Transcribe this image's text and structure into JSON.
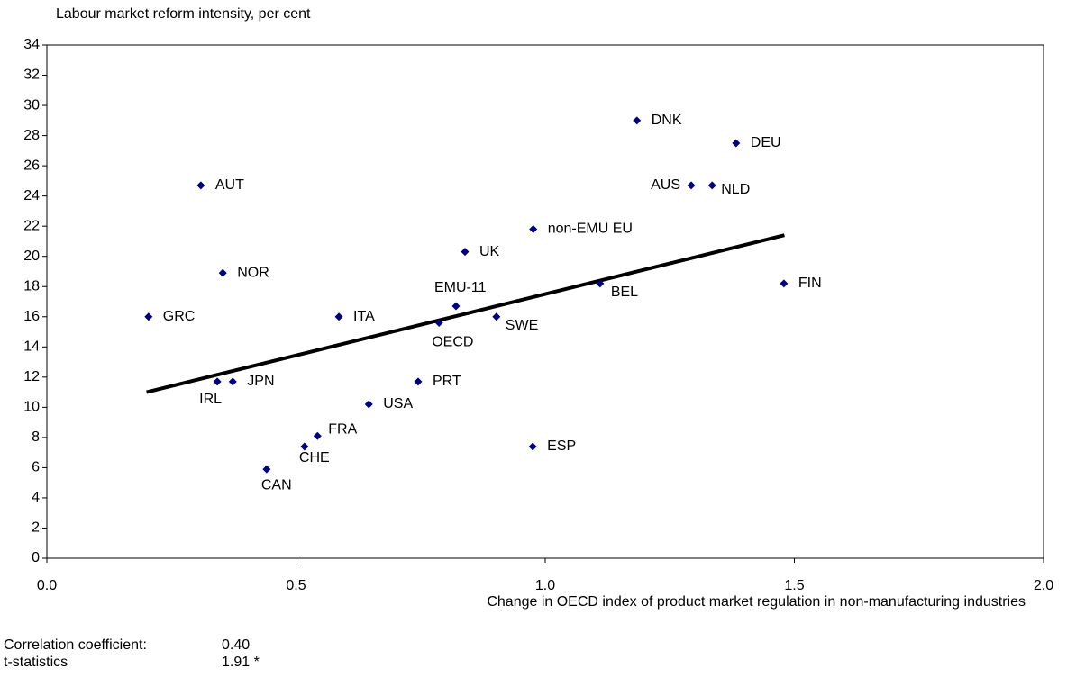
{
  "chart_data": {
    "type": "scatter",
    "y_label": "Labour market reform intensity, per cent",
    "x_label": "Change in OECD index of product market regulation in non-manufacturing industries",
    "color": "#000080",
    "xlim": [
      0,
      2
    ],
    "ylim": [
      0,
      34
    ],
    "xticks": [
      {
        "value": 0,
        "label": "0.0"
      },
      0.5,
      {
        "value": 1,
        "label": "1.0"
      },
      1.5,
      {
        "value": 2,
        "label": "2.0"
      }
    ],
    "yticks": [
      0,
      2,
      4,
      6,
      8,
      10,
      12,
      14,
      16,
      18,
      20,
      22,
      24,
      26,
      28,
      30,
      32,
      34
    ],
    "points": {
      "labels": [
        "DNK",
        "DEU",
        "AUS",
        "NLD",
        "AUT",
        "non-EMU EU",
        "UK",
        "NOR",
        "BEL",
        "FIN",
        "EMU-11",
        "GRC",
        "ITA",
        "SWE",
        "OECD",
        "IRL",
        "JPN",
        "PRT",
        "USA",
        "FRA",
        "CHE",
        "ESP",
        "CAN"
      ],
      "x": [
        1.184,
        1.383,
        1.293,
        1.335,
        0.309,
        0.976,
        0.839,
        0.353,
        1.11,
        1.479,
        0.821,
        0.204,
        0.586,
        0.902,
        0.787,
        0.342,
        0.373,
        0.745,
        0.646,
        0.543,
        0.517,
        0.975,
        0.441
      ],
      "y": [
        29.0,
        27.5,
        24.7,
        24.7,
        24.7,
        21.8,
        20.3,
        18.9,
        18.2,
        18.2,
        16.7,
        16.0,
        16.0,
        16.0,
        15.6,
        11.7,
        11.7,
        11.7,
        10.2,
        8.1,
        7.4,
        7.4,
        5.9
      ]
    },
    "trend_line": {
      "x": [
        0.2,
        1.48
      ],
      "y": [
        11.0,
        21.4
      ]
    },
    "notes": [
      [
        "Correlation coefficient:",
        "0.40"
      ],
      [
        "t-statistics",
        "1.91 *"
      ]
    ]
  }
}
